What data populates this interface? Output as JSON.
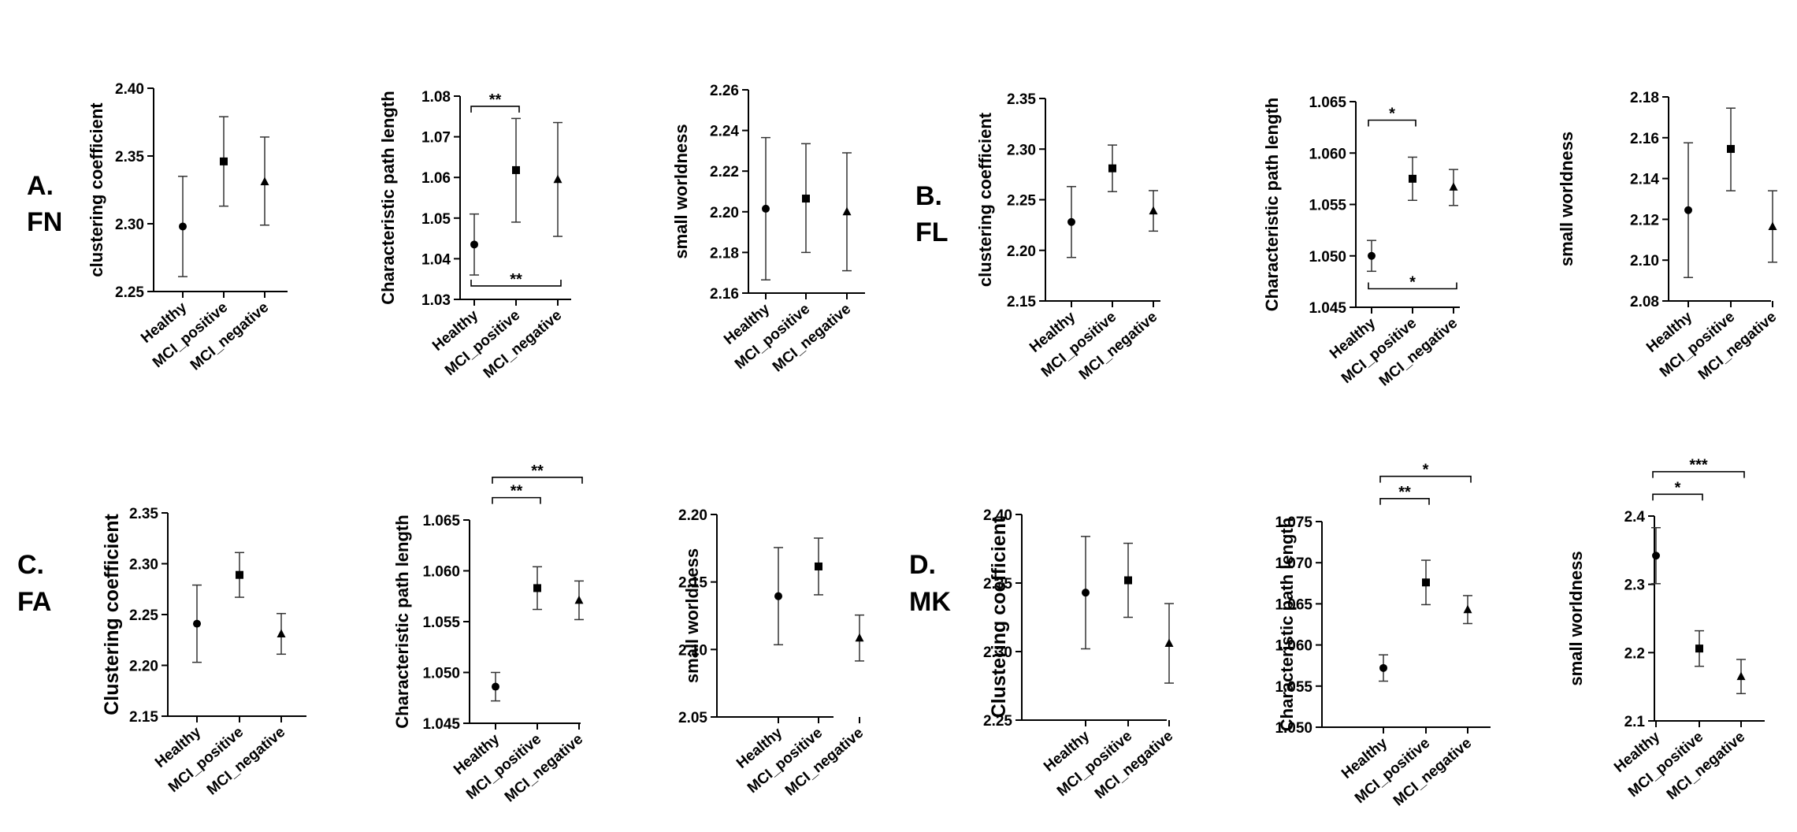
{
  "panel_labels": [
    {
      "letter": "A.",
      "modality": "FN"
    },
    {
      "letter": "B.",
      "modality": "FL"
    },
    {
      "letter": "C.",
      "modality": "FA"
    },
    {
      "letter": "D.",
      "modality": "MK"
    }
  ],
  "chart_data": [
    {
      "type": "scatter",
      "group": "A",
      "ylabel": "clustering coefficient",
      "categories": [
        "Healthy",
        "MCI_positive",
        "MCI_negative"
      ],
      "values": [
        2.298,
        2.346,
        2.331
      ],
      "lower": [
        2.261,
        2.313,
        2.299
      ],
      "upper": [
        2.335,
        2.379,
        2.364
      ],
      "markers": [
        "circle",
        "square",
        "triangle"
      ],
      "ylim": [
        2.25,
        2.4
      ],
      "yticks": [
        "2.25",
        "2.30",
        "2.35",
        "2.40"
      ],
      "significance": []
    },
    {
      "type": "scatter",
      "group": "A",
      "ylabel": "Characteristic path length",
      "categories": [
        "Healthy",
        "MCI_positive",
        "MCI_negative"
      ],
      "values": [
        1.0435,
        1.0618,
        1.0595
      ],
      "lower": [
        1.036,
        1.049,
        1.0455
      ],
      "upper": [
        1.051,
        1.0745,
        1.0735
      ],
      "markers": [
        "circle",
        "square",
        "triangle"
      ],
      "ylim": [
        1.03,
        1.08
      ],
      "yticks": [
        "1.03",
        "1.04",
        "1.05",
        "1.06",
        "1.07",
        "1.08"
      ],
      "significance": [
        {
          "from": 0,
          "to": 1,
          "label": "**",
          "at": 1.0775,
          "dir": "down"
        },
        {
          "from": 0,
          "to": 2,
          "label": "**",
          "at": 1.0333,
          "dir": "up"
        }
      ]
    },
    {
      "type": "scatter",
      "group": "A",
      "ylabel": "small worldness",
      "categories": [
        "Healthy",
        "MCI_positive",
        "MCI_negative"
      ],
      "values": [
        2.2015,
        2.2065,
        2.2
      ],
      "lower": [
        2.1665,
        2.18,
        2.171
      ],
      "upper": [
        2.2365,
        2.2335,
        2.229
      ],
      "markers": [
        "circle",
        "square",
        "triangle"
      ],
      "ylim": [
        2.16,
        2.26
      ],
      "yticks": [
        "2.16",
        "2.18",
        "2.20",
        "2.22",
        "2.24",
        "2.26"
      ],
      "significance": []
    },
    {
      "type": "scatter",
      "group": "B",
      "ylabel": "clustering coefficient",
      "categories": [
        "Healthy",
        "MCI_positive",
        "MCI_negative"
      ],
      "values": [
        2.228,
        2.281,
        2.239
      ],
      "lower": [
        2.193,
        2.258,
        2.219
      ],
      "upper": [
        2.263,
        2.304,
        2.259
      ],
      "markers": [
        "circle",
        "square",
        "triangle"
      ],
      "ylim": [
        2.15,
        2.35
      ],
      "yticks": [
        "2.15",
        "2.20",
        "2.25",
        "2.30",
        "2.35"
      ],
      "significance": []
    },
    {
      "type": "scatter",
      "group": "B",
      "ylabel": "Characteristic path length",
      "categories": [
        "Healthy",
        "MCI_positive",
        "MCI_negative"
      ],
      "values": [
        1.05,
        1.0575,
        1.0567
      ],
      "lower": [
        1.0485,
        1.0554,
        1.0549
      ],
      "upper": [
        1.0515,
        1.0596,
        1.0584
      ],
      "markers": [
        "circle",
        "square",
        "triangle"
      ],
      "ylim": [
        1.045,
        1.065
      ],
      "yticks": [
        "1.045",
        "1.050",
        "1.055",
        "1.060",
        "1.065"
      ],
      "significance": [
        {
          "from": 0,
          "to": 1,
          "label": "*",
          "at": 1.0632,
          "dir": "down"
        },
        {
          "from": 0,
          "to": 2,
          "label": "*",
          "at": 1.0468,
          "dir": "up"
        }
      ]
    },
    {
      "type": "scatter",
      "group": "B",
      "ylabel": "small worldness",
      "categories": [
        "Healthy",
        "MCI_positive",
        "MCI_negative"
      ],
      "values": [
        2.1245,
        2.1545,
        2.1165
      ],
      "lower": [
        2.0915,
        2.134,
        2.099
      ],
      "upper": [
        2.1575,
        2.1745,
        2.134
      ],
      "markers": [
        "circle",
        "square",
        "triangle"
      ],
      "ylim": [
        2.08,
        2.18
      ],
      "yticks": [
        "2.08",
        "2.10",
        "2.12",
        "2.14",
        "2.16",
        "2.18"
      ],
      "significance": []
    },
    {
      "type": "scatter",
      "group": "C",
      "ylabel": "Clustering coefficient",
      "categories": [
        "Healthy",
        "MCI_positive",
        "MCI_negative"
      ],
      "values": [
        2.241,
        2.289,
        2.231
      ],
      "lower": [
        2.203,
        2.267,
        2.211
      ],
      "upper": [
        2.279,
        2.311,
        2.251
      ],
      "markers": [
        "circle",
        "square",
        "triangle"
      ],
      "ylim": [
        2.15,
        2.35
      ],
      "yticks": [
        "2.15",
        "2.20",
        "2.25",
        "2.30",
        "2.35"
      ],
      "significance": []
    },
    {
      "type": "scatter",
      "group": "C",
      "ylabel": "Characteristic path length",
      "categories": [
        "Healthy",
        "MCI_positive",
        "MCI_negative"
      ],
      "values": [
        1.0486,
        1.0583,
        1.0571
      ],
      "lower": [
        1.0472,
        1.0562,
        1.0552
      ],
      "upper": [
        1.05,
        1.0604,
        1.059
      ],
      "markers": [
        "circle",
        "square",
        "triangle"
      ],
      "ylim": [
        1.045,
        1.065
      ],
      "yticks": [
        "1.045",
        "1.050",
        "1.055",
        "1.060",
        "1.065"
      ],
      "significance": [
        {
          "from": 0,
          "to": 1,
          "label": "**",
          "at": 1.0672,
          "dir": "down"
        },
        {
          "from": 0,
          "to": 2,
          "label": "**",
          "at": 1.0692,
          "dir": "down"
        }
      ]
    },
    {
      "type": "scatter",
      "group": "C",
      "ylabel": "small worldness",
      "categories": [
        "Healthy",
        "MCI_positive",
        "MCI_negative"
      ],
      "values": [
        2.1395,
        2.1615,
        2.1085
      ],
      "lower": [
        2.1035,
        2.1405,
        2.0915
      ],
      "upper": [
        2.1755,
        2.1825,
        2.1255
      ],
      "markers": [
        "circle",
        "square",
        "triangle"
      ],
      "ylim": [
        2.05,
        2.2
      ],
      "yticks": [
        "2.05",
        "2.10",
        "2.15",
        "2.20"
      ],
      "significance": []
    },
    {
      "type": "scatter",
      "group": "D",
      "ylabel": "Clustering coefficient",
      "categories": [
        "Healthy",
        "MCI_positive",
        "MCI_negative"
      ],
      "values": [
        2.343,
        2.352,
        2.306
      ],
      "lower": [
        2.302,
        2.325,
        2.277
      ],
      "upper": [
        2.384,
        2.379,
        2.335
      ],
      "markers": [
        "circle",
        "square",
        "triangle"
      ],
      "ylim": [
        2.25,
        2.4
      ],
      "yticks": [
        "2.25",
        "2.30",
        "2.35",
        "2.40"
      ],
      "significance": []
    },
    {
      "type": "scatter",
      "group": "D",
      "ylabel": "Characteristic path length",
      "categories": [
        "Healthy",
        "MCI_positive",
        "MCI_negative"
      ],
      "values": [
        1.0572,
        1.0676,
        1.0643
      ],
      "lower": [
        1.0556,
        1.0649,
        1.0626
      ],
      "upper": [
        1.0588,
        1.0703,
        1.066
      ],
      "markers": [
        "circle",
        "square",
        "triangle"
      ],
      "ylim": [
        1.05,
        1.075
      ],
      "yticks": [
        "1.050",
        "1.055",
        "1.060",
        "1.065",
        "1.070",
        "1.075"
      ],
      "significance": [
        {
          "from": 0,
          "to": 1,
          "label": "**",
          "at": 1.0778,
          "dir": "down"
        },
        {
          "from": 0,
          "to": 2,
          "label": "*",
          "at": 1.0805,
          "dir": "down"
        }
      ]
    },
    {
      "type": "scatter",
      "group": "D",
      "ylabel": "small worldness",
      "categories": [
        "Healthy",
        "MCI_positive",
        "MCI_negative"
      ],
      "values": [
        2.342,
        2.206,
        2.165
      ],
      "lower": [
        2.301,
        2.18,
        2.14
      ],
      "upper": [
        2.383,
        2.232,
        2.19
      ],
      "markers": [
        "circle",
        "square",
        "triangle"
      ],
      "ylim": [
        2.1,
        2.4
      ],
      "yticks": [
        "2.1",
        "2.2",
        "2.3",
        "2.4"
      ],
      "significance": [
        {
          "from": 0,
          "to": 1,
          "label": "*",
          "at": 2.432,
          "dir": "down"
        },
        {
          "from": 0,
          "to": 2,
          "label": "***",
          "at": 2.465,
          "dir": "down"
        }
      ]
    }
  ]
}
